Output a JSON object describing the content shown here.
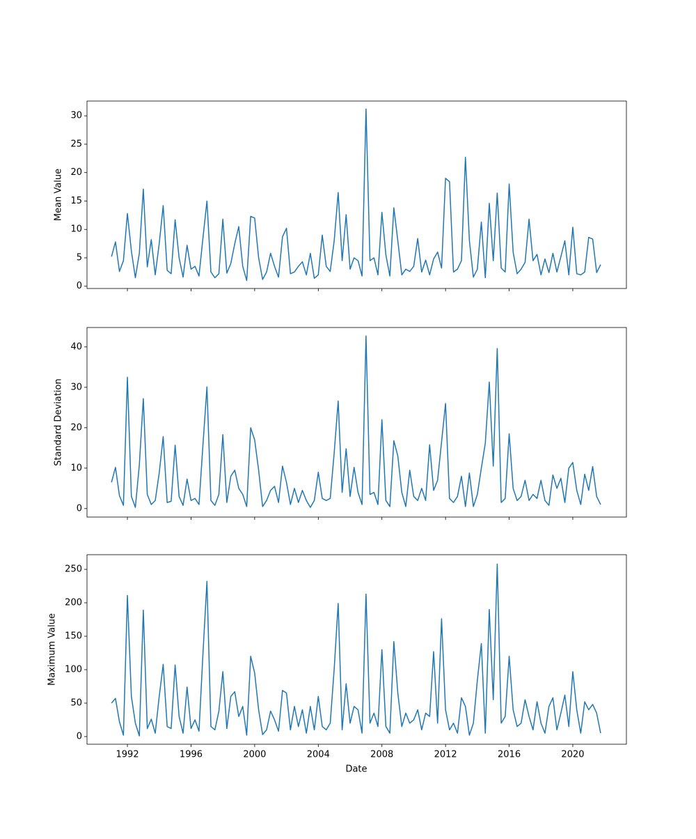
{
  "chart_data": {
    "type": "line",
    "xlabel": "Date",
    "x": [
      1991,
      1991.25,
      1991.5,
      1991.75,
      1992,
      1992.25,
      1992.5,
      1992.75,
      1993,
      1993.25,
      1993.5,
      1993.75,
      1994,
      1994.25,
      1994.5,
      1994.75,
      1995,
      1995.25,
      1995.5,
      1995.75,
      1996,
      1996.25,
      1996.5,
      1996.75,
      1997,
      1997.25,
      1997.5,
      1997.75,
      1998,
      1998.25,
      1998.5,
      1998.75,
      1999,
      1999.25,
      1999.5,
      1999.75,
      2000,
      2000.25,
      2000.5,
      2000.75,
      2001,
      2001.25,
      2001.5,
      2001.75,
      2002,
      2002.25,
      2002.5,
      2002.75,
      2003,
      2003.25,
      2003.5,
      2003.75,
      2004,
      2004.25,
      2004.5,
      2004.75,
      2005,
      2005.25,
      2005.5,
      2005.75,
      2006,
      2006.25,
      2006.5,
      2006.75,
      2007,
      2007.25,
      2007.5,
      2007.75,
      2008,
      2008.25,
      2008.5,
      2008.75,
      2009,
      2009.25,
      2009.5,
      2009.75,
      2010,
      2010.25,
      2010.5,
      2010.75,
      2011,
      2011.25,
      2011.5,
      2011.75,
      2012,
      2012.25,
      2012.5,
      2012.75,
      2013,
      2013.25,
      2013.5,
      2013.75,
      2014,
      2014.25,
      2014.5,
      2014.75,
      2015,
      2015.25,
      2015.5,
      2015.75,
      2016,
      2016.25,
      2016.5,
      2016.75,
      2017,
      2017.25,
      2017.5,
      2017.75,
      2018,
      2018.25,
      2018.5,
      2018.75,
      2019,
      2019.25,
      2019.5,
      2019.75,
      2020,
      2020.25,
      2020.5,
      2020.75,
      2021,
      2021.25,
      2021.5,
      2021.75
    ],
    "xlim": [
      1989.46,
      2023.37
    ],
    "xticks": [
      1992,
      1996,
      2000,
      2004,
      2008,
      2012,
      2016,
      2020
    ],
    "panels": [
      {
        "ylabel": "Mean Value",
        "ylim": [
          -0.4,
          32.6
        ],
        "yticks": [
          0,
          5,
          10,
          15,
          20,
          25,
          30
        ],
        "series": [
          {
            "color": "#1f77b4",
            "values": [
              5.2,
              7.8,
              2.6,
              4.5,
              12.8,
              6.2,
              1.5,
              5.8,
              17.1,
              3.4,
              8.2,
              2.0,
              7.5,
              14.2,
              2.8,
              2.2,
              11.7,
              5.0,
              1.6,
              7.2,
              3.0,
              3.5,
              1.8,
              8.5,
              15.0,
              2.5,
              1.5,
              2.2,
              11.8,
              2.3,
              4.0,
              7.5,
              10.5,
              3.5,
              1.0,
              12.3,
              12.0,
              5.0,
              1.2,
              2.5,
              5.8,
              3.5,
              1.6,
              8.7,
              10.2,
              2.2,
              2.5,
              3.5,
              4.3,
              2.0,
              5.8,
              1.4,
              2.0,
              9.0,
              3.5,
              2.6,
              8.0,
              16.5,
              4.5,
              12.6,
              3.0,
              5.0,
              4.5,
              1.8,
              31.2,
              4.5,
              5.0,
              2.0,
              13.0,
              5.5,
              1.8,
              13.8,
              8.0,
              2.0,
              3.0,
              2.6,
              3.5,
              8.4,
              2.5,
              4.6,
              2.0,
              4.8,
              6.0,
              3.2,
              19.0,
              18.4,
              2.5,
              3.0,
              4.5,
              22.7,
              8.0,
              1.6,
              3.0,
              11.3,
              1.5,
              14.6,
              4.5,
              16.4,
              3.2,
              2.5,
              18.0,
              6.0,
              2.2,
              3.0,
              4.2,
              11.8,
              4.5,
              5.6,
              2.0,
              4.8,
              2.4,
              5.8,
              2.5,
              5.2,
              8.0,
              2.0,
              10.4,
              2.2,
              2.0,
              2.5,
              8.6,
              8.3,
              2.4,
              3.8
            ]
          }
        ]
      },
      {
        "ylabel": "Standard Deviation",
        "ylim": [
          -2.1,
          44.8
        ],
        "yticks": [
          0,
          10,
          20,
          30,
          40
        ],
        "series": [
          {
            "color": "#1f77b4",
            "values": [
              6.5,
              10.2,
              3.2,
              0.8,
              32.5,
              3.0,
              0.3,
              10.8,
              27.2,
              3.5,
              1.0,
              2.0,
              8.8,
              17.8,
              1.5,
              1.8,
              15.7,
              3.0,
              0.8,
              7.3,
              2.0,
              2.5,
              1.0,
              15.8,
              30.1,
              2.0,
              0.8,
              3.5,
              18.3,
              1.5,
              8.0,
              9.5,
              5.0,
              3.5,
              0.5,
              20.0,
              17.0,
              9.5,
              0.5,
              2.0,
              4.5,
              5.5,
              1.5,
              10.5,
              6.5,
              1.0,
              5.0,
              1.5,
              4.5,
              2.0,
              0.3,
              2.0,
              9.0,
              2.5,
              2.0,
              2.5,
              13.8,
              26.6,
              4.0,
              14.8,
              3.0,
              10.2,
              4.0,
              1.0,
              42.7,
              3.5,
              4.0,
              1.0,
              22.0,
              2.0,
              0.5,
              16.8,
              13.0,
              4.0,
              0.5,
              9.5,
              3.0,
              2.0,
              5.0,
              2.0,
              15.8,
              4.5,
              7.0,
              16.5,
              26.0,
              2.5,
              1.5,
              3.0,
              8.0,
              0.5,
              8.8,
              0.5,
              3.5,
              10.0,
              16.2,
              31.3,
              10.5,
              39.6,
              1.5,
              2.5,
              18.5,
              5.0,
              2.0,
              3.0,
              7.0,
              2.0,
              3.5,
              2.5,
              7.0,
              2.0,
              0.8,
              8.3,
              5.0,
              7.5,
              1.5,
              10.0,
              11.4,
              4.5,
              1.0,
              8.5,
              4.5,
              10.4,
              3.0,
              1.0
            ]
          }
        ]
      },
      {
        "ylabel": "Maximum Value",
        "ylim": [
          -11.5,
          271.9
        ],
        "yticks": [
          0,
          50,
          100,
          150,
          200,
          250
        ],
        "series": [
          {
            "color": "#1f77b4",
            "values": [
              50,
              57,
              22,
              2,
              211,
              60,
              20,
              1,
              189,
              12,
              26,
              5,
              60,
              108,
              15,
              12,
              107,
              30,
              5,
              74,
              12,
              25,
              8,
              124,
              232,
              15,
              10,
              38,
              97,
              12,
              60,
              67,
              30,
              45,
              2,
              120,
              95,
              40,
              3,
              10,
              38,
              25,
              8,
              69,
              65,
              10,
              45,
              15,
              40,
              5,
              45,
              10,
              60,
              15,
              10,
              20,
              101,
              199,
              10,
              79,
              20,
              45,
              40,
              5,
              213,
              20,
              35,
              15,
              130,
              15,
              5,
              142,
              65,
              15,
              35,
              20,
              25,
              40,
              10,
              35,
              30,
              127,
              20,
              176,
              40,
              10,
              20,
              5,
              58,
              45,
              2,
              20,
              84,
              139,
              5,
              190,
              55,
              258,
              20,
              30,
              120,
              40,
              15,
              20,
              55,
              30,
              10,
              52,
              20,
              5,
              45,
              58,
              10,
              35,
              62,
              15,
              97,
              40,
              5,
              52,
              40,
              48,
              35,
              5
            ]
          }
        ]
      }
    ]
  }
}
